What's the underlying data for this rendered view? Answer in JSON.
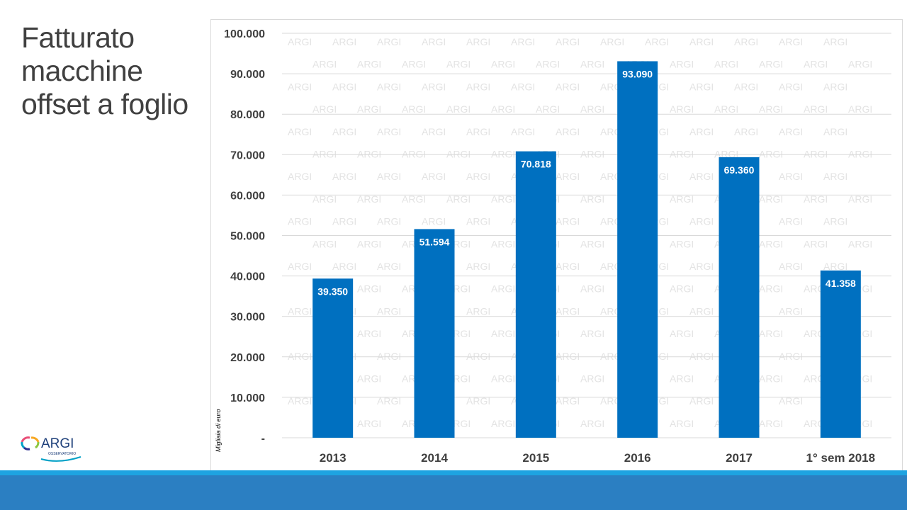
{
  "slide": {
    "title_lines": [
      "Fatturato",
      "macchine",
      "offset a foglio"
    ]
  },
  "logo": {
    "name": "ARGI",
    "subtitle": "OSSERVATORIO"
  },
  "watermark": {
    "text": "ARGI"
  },
  "colors": {
    "bar": "#0070c0",
    "gridline": "#d9d9d9",
    "footer": "#2b7fc2",
    "footer_light": "#1ea3e1",
    "title": "#404040"
  },
  "chart_data": {
    "type": "bar",
    "title": "",
    "xlabel": "",
    "ylabel": "Migliaia di euro",
    "categories": [
      "2013",
      "2014",
      "2015",
      "2016",
      "2017",
      "1° sem 2018"
    ],
    "series": [
      {
        "values": [
          39350,
          51594,
          70818,
          93090,
          69360,
          41358
        ]
      }
    ],
    "data_labels": [
      "39.350",
      "51.594",
      "70.818",
      "93.090",
      "69.360",
      "41.358"
    ],
    "ylim": [
      0,
      100000
    ],
    "yticks": [
      0,
      10000,
      20000,
      30000,
      40000,
      50000,
      60000,
      70000,
      80000,
      90000,
      100000
    ],
    "ytick_labels": [
      "-",
      "10.000",
      "20.000",
      "30.000",
      "40.000",
      "50.000",
      "60.000",
      "70.000",
      "80.000",
      "90.000",
      "100.000"
    ],
    "grid": true,
    "legend": "none"
  }
}
